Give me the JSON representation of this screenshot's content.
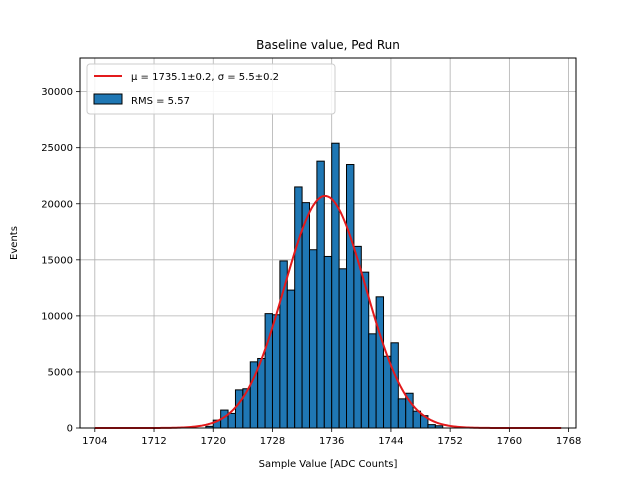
{
  "chart_data": {
    "type": "bar",
    "title": "Baseline value, Ped Run",
    "xlabel": "Sample Value [ADC Counts]",
    "ylabel": "Events",
    "xlim": [
      1702,
      1769
    ],
    "ylim": [
      0,
      33000
    ],
    "xticks": [
      1704,
      1712,
      1720,
      1728,
      1736,
      1744,
      1752,
      1760,
      1768
    ],
    "yticks": [
      0,
      5000,
      10000,
      15000,
      20000,
      25000,
      30000
    ],
    "grid": true,
    "legend_position": "top-left",
    "bin_width": 1,
    "bins": [
      {
        "x": 1719,
        "y": 150
      },
      {
        "x": 1720,
        "y": 700
      },
      {
        "x": 1721,
        "y": 1600
      },
      {
        "x": 1722,
        "y": 1300
      },
      {
        "x": 1723,
        "y": 3400
      },
      {
        "x": 1724,
        "y": 3500
      },
      {
        "x": 1725,
        "y": 5900
      },
      {
        "x": 1726,
        "y": 6200
      },
      {
        "x": 1727,
        "y": 10200
      },
      {
        "x": 1728,
        "y": 10100
      },
      {
        "x": 1729,
        "y": 14900
      },
      {
        "x": 1730,
        "y": 12300
      },
      {
        "x": 1731,
        "y": 21500
      },
      {
        "x": 1732,
        "y": 20100
      },
      {
        "x": 1733,
        "y": 15900
      },
      {
        "x": 1734,
        "y": 23800
      },
      {
        "x": 1735,
        "y": 15300
      },
      {
        "x": 1736,
        "y": 25400
      },
      {
        "x": 1737,
        "y": 14200
      },
      {
        "x": 1738,
        "y": 23500
      },
      {
        "x": 1739,
        "y": 16200
      },
      {
        "x": 1740,
        "y": 13900
      },
      {
        "x": 1741,
        "y": 8400
      },
      {
        "x": 1742,
        "y": 11700
      },
      {
        "x": 1743,
        "y": 6400
      },
      {
        "x": 1744,
        "y": 7600
      },
      {
        "x": 1745,
        "y": 2600
      },
      {
        "x": 1746,
        "y": 3100
      },
      {
        "x": 1747,
        "y": 1500
      },
      {
        "x": 1748,
        "y": 1100
      },
      {
        "x": 1749,
        "y": 300
      },
      {
        "x": 1750,
        "y": 200
      }
    ],
    "series": [
      {
        "name": "RMS = 5.57",
        "kind": "histogram",
        "color": "#1f77b4",
        "edgecolor": "#000000"
      },
      {
        "name": "μ = 1735.1±0.2, σ = 5.5±0.2",
        "kind": "gaussian-fit",
        "color": "#e31a1c",
        "mu": 1735.1,
        "sigma": 5.5,
        "amplitude": 20700,
        "range": [
          1704,
          1767
        ]
      }
    ]
  }
}
